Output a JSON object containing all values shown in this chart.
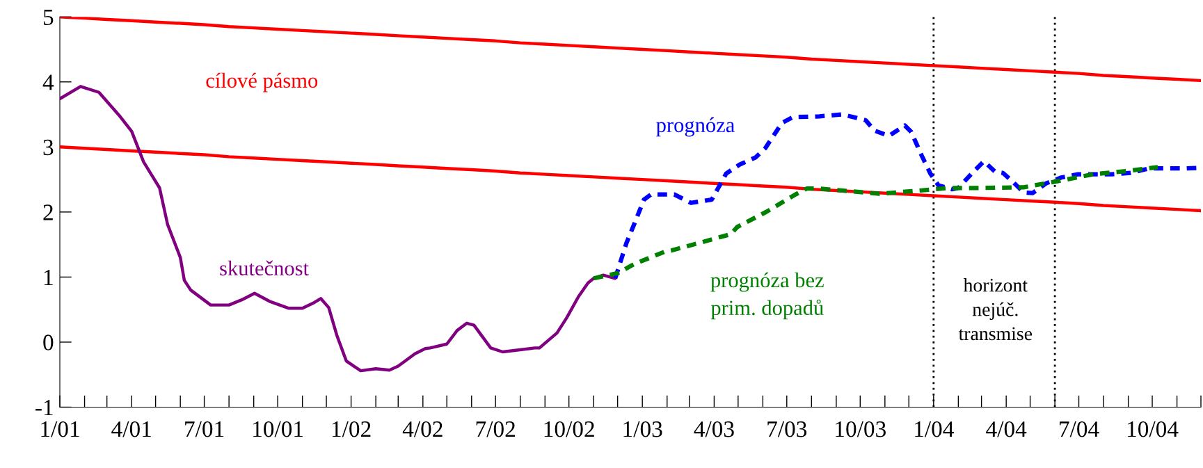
{
  "chart_data": {
    "type": "line",
    "x": [
      "2001-01",
      "2001-02",
      "2001-03",
      "2001-04",
      "2001-05",
      "2001-06",
      "2001-07",
      "2001-08",
      "2001-09",
      "2001-10",
      "2001-11",
      "2001-12",
      "2002-01",
      "2002-02",
      "2002-03",
      "2002-04",
      "2002-05",
      "2002-06",
      "2002-07",
      "2002-08",
      "2002-09",
      "2002-10",
      "2002-11",
      "2002-12",
      "2003-01",
      "2003-02",
      "2003-03",
      "2003-04",
      "2003-05",
      "2003-06",
      "2003-07",
      "2003-08",
      "2003-09",
      "2003-10",
      "2003-11",
      "2003-12",
      "2004-01",
      "2004-02",
      "2004-03",
      "2004-04",
      "2004-05",
      "2004-06",
      "2004-07",
      "2004-08",
      "2004-09",
      "2004-10",
      "2004-11",
      "2004-12"
    ],
    "series": [
      {
        "name": "cílové pásmo",
        "color": "#ff0000",
        "values": [
          5.0,
          4.98,
          4.96,
          4.94,
          4.92,
          4.9,
          4.88,
          4.85,
          4.83,
          4.81,
          4.79,
          4.77,
          4.75,
          4.73,
          4.71,
          4.69,
          4.67,
          4.65,
          4.63,
          4.6,
          4.58,
          4.56,
          4.54,
          4.52,
          4.5,
          4.48,
          4.46,
          4.44,
          4.42,
          4.4,
          4.38,
          4.35,
          4.33,
          4.31,
          4.29,
          4.27,
          4.25,
          4.23,
          4.21,
          4.19,
          4.17,
          4.15,
          4.13,
          4.1,
          4.08,
          4.06,
          4.04,
          4.02
        ]
      },
      {
        "color": "#ff0000",
        "values": [
          3.0,
          2.98,
          2.96,
          2.94,
          2.92,
          2.9,
          2.88,
          2.85,
          2.83,
          2.81,
          2.79,
          2.77,
          2.75,
          2.73,
          2.71,
          2.69,
          2.67,
          2.65,
          2.63,
          2.6,
          2.58,
          2.56,
          2.54,
          2.52,
          2.5,
          2.48,
          2.46,
          2.44,
          2.42,
          2.4,
          2.38,
          2.35,
          2.33,
          2.31,
          2.29,
          2.27,
          2.25,
          2.23,
          2.21,
          2.19,
          2.17,
          2.15,
          2.13,
          2.1,
          2.08,
          2.06,
          2.04,
          2.02
        ]
      },
      {
        "name": "skutečnost",
        "color": "#800080",
        "x": [
          "2001-01-01",
          "2001-01-27",
          "2001-02-19",
          "2001-03-16",
          "2001-04-01",
          "2001-04-16",
          "2001-05-06",
          "2001-05-16",
          "2001-06-01",
          "2001-06-06",
          "2001-06-14",
          "2001-07-09",
          "2001-08-01",
          "2001-08-17",
          "2001-09-02",
          "2001-09-22",
          "2001-10-15",
          "2001-11-01",
          "2001-11-16",
          "2001-11-24",
          "2001-12-04",
          "2001-12-14",
          "2001-12-26",
          "2002-01-13",
          "2002-02-01",
          "2002-02-18",
          "2002-03-01",
          "2002-03-22",
          "2002-04-04",
          "2002-04-10",
          "2002-05-01",
          "2002-05-14",
          "2002-05-26",
          "2002-06-04",
          "2002-06-25",
          "2002-07-10",
          "2002-08-19",
          "2002-08-25",
          "2002-09-16",
          "2002-09-28",
          "2002-10-13",
          "2002-10-25",
          "2002-11-01",
          "2002-11-13",
          "2002-11-28"
        ],
        "values": [
          3.74,
          3.93,
          3.84,
          3.49,
          3.24,
          2.77,
          2.37,
          1.81,
          1.3,
          0.95,
          0.8,
          0.57,
          0.57,
          0.65,
          0.75,
          0.62,
          0.52,
          0.52,
          0.61,
          0.67,
          0.53,
          0.11,
          -0.29,
          -0.44,
          -0.41,
          -0.43,
          -0.37,
          -0.18,
          -0.1,
          -0.09,
          -0.03,
          0.18,
          0.29,
          0.26,
          -0.09,
          -0.15,
          -0.09,
          -0.09,
          0.14,
          0.37,
          0.7,
          0.91,
          0.98,
          1.03,
          0.98
        ]
      },
      {
        "name": "prognóza",
        "color": "#0000ff",
        "line_style": "dashed",
        "x": [
          "2002-11-28",
          "2002-12-12",
          "2002-12-22",
          "2003-01-03",
          "2003-01-12",
          "2003-02-10",
          "2003-03-03",
          "2003-03-29",
          "2003-04-16",
          "2003-05-03",
          "2003-05-23",
          "2003-06-04",
          "2003-06-25",
          "2003-07-09",
          "2003-08-11",
          "2003-09-09",
          "2003-10-08",
          "2003-10-19",
          "2003-11-06",
          "2003-11-26",
          "2003-12-04",
          "2003-12-17",
          "2003-12-28",
          "2004-01-07",
          "2004-01-24",
          "2004-02-01",
          "2004-02-20",
          "2004-03-04",
          "2004-03-18",
          "2004-03-28",
          "2004-04-08",
          "2004-04-23",
          "2004-05-04",
          "2004-05-21",
          "2004-06-09",
          "2004-06-30",
          "2004-08-11",
          "2004-09-04",
          "2004-09-27",
          "2004-11-10",
          "2004-12-01"
        ],
        "values": [
          0.98,
          1.52,
          1.82,
          2.19,
          2.27,
          2.27,
          2.14,
          2.19,
          2.59,
          2.73,
          2.84,
          2.98,
          3.37,
          3.46,
          3.47,
          3.5,
          3.41,
          3.25,
          3.17,
          3.33,
          3.23,
          2.87,
          2.59,
          2.41,
          2.35,
          2.37,
          2.62,
          2.78,
          2.62,
          2.6,
          2.48,
          2.3,
          2.29,
          2.44,
          2.53,
          2.58,
          2.58,
          2.6,
          2.67,
          2.67,
          2.68
        ]
      },
      {
        "name": "prognóza bez\nprim. dopadů",
        "color": "#008000",
        "line_style": "dashed",
        "x": [
          "2002-11-01",
          "2002-12-01",
          "2002-12-22",
          "2003-01-29",
          "2003-02-07",
          "2003-03-12",
          "2003-04-22",
          "2003-04-30",
          "2003-06-05",
          "2003-07-12",
          "2003-07-26",
          "2003-08-10",
          "2003-09-09",
          "2003-10-25",
          "2003-12-05",
          "2004-01-21",
          "2004-02-28",
          "2004-04-23",
          "2004-06-03",
          "2004-07-19",
          "2004-08-31",
          "2004-10-08"
        ],
        "values": [
          0.98,
          1.06,
          1.2,
          1.39,
          1.41,
          1.52,
          1.66,
          1.77,
          2.0,
          2.27,
          2.36,
          2.36,
          2.33,
          2.28,
          2.32,
          2.37,
          2.37,
          2.38,
          2.47,
          2.58,
          2.63,
          2.69
        ]
      }
    ],
    "xlim": [
      "2001-01",
      "2004-12"
    ],
    "xticks": [
      {
        "value": "2001-01",
        "label": "1/01"
      },
      {
        "value": "2001-04",
        "label": "4/01"
      },
      {
        "value": "2001-07",
        "label": "7/01"
      },
      {
        "value": "2001-10",
        "label": "10/01"
      },
      {
        "value": "2002-01",
        "label": "1/02"
      },
      {
        "value": "2002-04",
        "label": "4/02"
      },
      {
        "value": "2002-07",
        "label": "7/02"
      },
      {
        "value": "2002-10",
        "label": "10/02"
      },
      {
        "value": "2003-01",
        "label": "1/03"
      },
      {
        "value": "2003-04",
        "label": "4/03"
      },
      {
        "value": "2003-07",
        "label": "7/03"
      },
      {
        "value": "2003-10",
        "label": "10/03"
      },
      {
        "value": "2004-01",
        "label": "1/04"
      },
      {
        "value": "2004-04",
        "label": "4/04"
      },
      {
        "value": "2004-07",
        "label": "7/04"
      },
      {
        "value": "2004-10",
        "label": "10/04"
      }
    ],
    "ylim": [
      -1,
      5
    ],
    "yticks": [
      {
        "value": -1,
        "label": "-1"
      },
      0,
      1,
      2,
      3,
      4,
      5
    ],
    "ref_lines": [
      {
        "axis": "x",
        "value": "2004-01",
        "color": "#000000",
        "line_style": "dotted"
      },
      {
        "axis": "x",
        "value": "2004-06",
        "color": "#000000",
        "line_style": "dotted"
      }
    ],
    "annotations": [
      "horizont\nnejúč.\ntransmise"
    ]
  }
}
